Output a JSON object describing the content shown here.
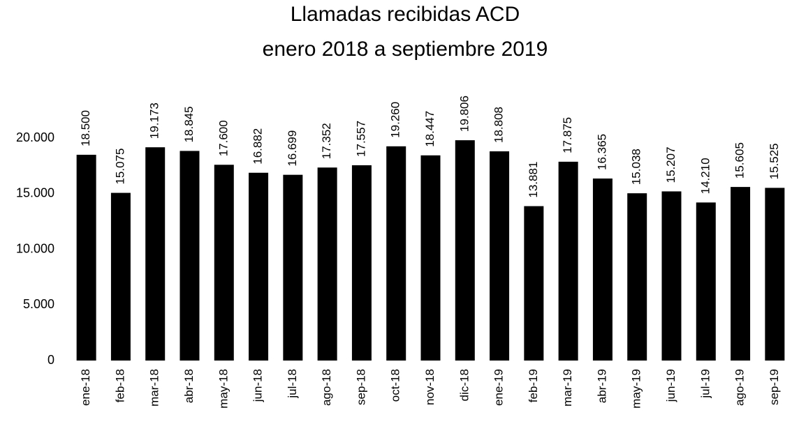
{
  "chart_data": {
    "type": "bar",
    "title": "Llamadas recibidas ACD",
    "subtitle": "enero 2018 a septiembre 2019",
    "categories": [
      "ene-18",
      "feb-18",
      "mar-18",
      "abr-18",
      "may-18",
      "jun-18",
      "jul-18",
      "ago-18",
      "sep-18",
      "oct-18",
      "nov-18",
      "dic-18",
      "ene-19",
      "feb-19",
      "mar-19",
      "abr-19",
      "may-19",
      "jun-19",
      "jul-19",
      "ago-19",
      "sep-19"
    ],
    "values": [
      18500,
      15075,
      19173,
      18845,
      17600,
      16882,
      16699,
      17352,
      17557,
      19260,
      18447,
      19806,
      18808,
      13881,
      17875,
      16365,
      15038,
      15207,
      14210,
      15605,
      15525
    ],
    "value_labels": [
      "18.500",
      "15.075",
      "19.173",
      "18.845",
      "17.600",
      "16.882",
      "16.699",
      "17.352",
      "17.557",
      "19.260",
      "18.447",
      "19.806",
      "18.808",
      "13.881",
      "17.875",
      "16.365",
      "15.038",
      "15.207",
      "14.210",
      "15.605",
      "15.525"
    ],
    "color": "#000000",
    "ylim": [
      0,
      20000
    ],
    "yticks": [
      0,
      {
        "value": 5000,
        "label": "5.000"
      },
      {
        "value": 10000,
        "label": "10.000"
      },
      {
        "value": 15000,
        "label": "15.000"
      },
      {
        "value": 20000,
        "label": "20.000"
      }
    ],
    "grid": false
  }
}
